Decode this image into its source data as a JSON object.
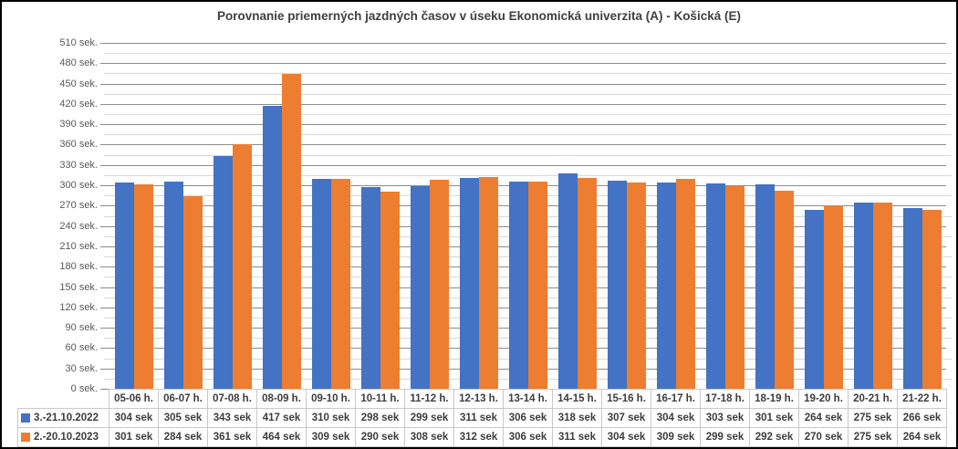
{
  "window": {
    "background": "#ffffff",
    "border_color": "#000000"
  },
  "chart_data": {
    "type": "bar",
    "title": "Porovnanie priemerných jazdných časov v úseku Ekonomická univerzita (A) - Košická (E)",
    "categories": [
      "05-06 h.",
      "06-07 h.",
      "07-08 h.",
      "08-09 h.",
      "09-10 h.",
      "10-11 h.",
      "11-12 h.",
      "12-13 h.",
      "13-14 h.",
      "14-15 h.",
      "15-16 h.",
      "16-17 h.",
      "17-18 h.",
      "18-19 h.",
      "19-20 h.",
      "20-21 h.",
      "21-22 h."
    ],
    "series": [
      {
        "name": "3.-21.10.2022",
        "color": "#4472C4",
        "values": [
          304,
          305,
          343,
          417,
          310,
          298,
          299,
          311,
          306,
          318,
          307,
          304,
          303,
          301,
          264,
          275,
          266
        ]
      },
      {
        "name": "2.-20.10.2023",
        "color": "#ED7D31",
        "values": [
          301,
          284,
          361,
          464,
          309,
          290,
          308,
          312,
          306,
          311,
          304,
          309,
          299,
          292,
          270,
          275,
          264
        ]
      }
    ],
    "y_axis": {
      "min": 0,
      "max": 510,
      "major_step": 30,
      "minor_step": 15,
      "tick_suffix": "sek."
    },
    "value_suffix": "sek",
    "grid": {
      "major_color": "#8C8C8C",
      "minor_color": "#D8D8D8",
      "table_border_color": "#C9C9C9"
    },
    "legend_position": "left-of-data-table",
    "data_table_shown": true
  }
}
